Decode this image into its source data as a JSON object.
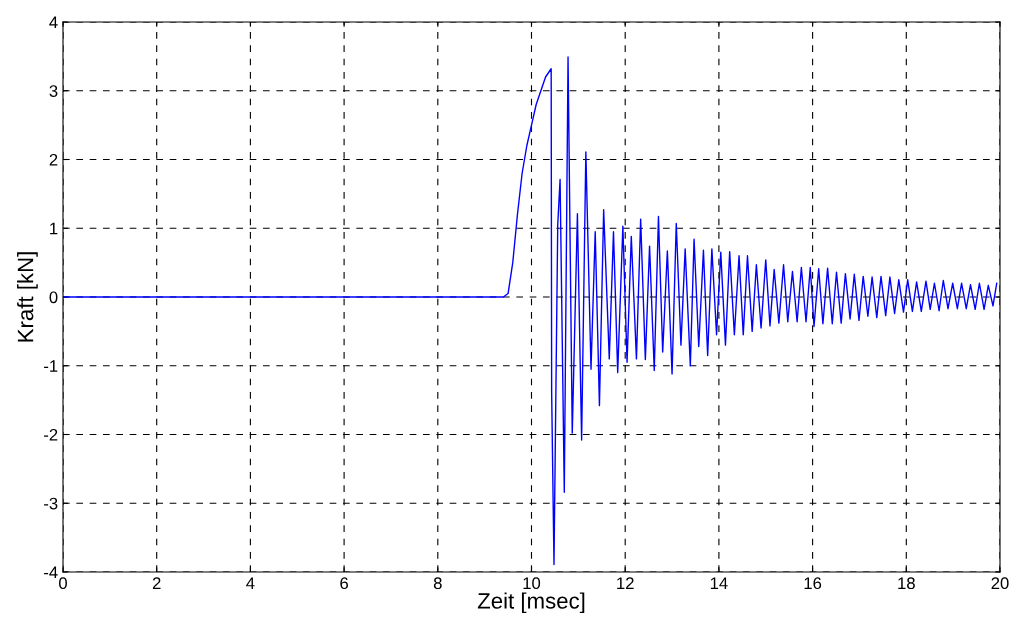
{
  "chart_data": {
    "type": "line",
    "xlabel": "Zeit [msec]",
    "ylabel": "Kraft [kN]",
    "xlim": [
      0,
      20
    ],
    "ylim": [
      -4,
      4
    ],
    "xticks": [
      0,
      2,
      4,
      6,
      8,
      10,
      12,
      14,
      16,
      18,
      20
    ],
    "yticks": [
      -4,
      -3,
      -2,
      -1,
      0,
      1,
      2,
      3,
      4
    ],
    "grid": true,
    "line_style": "solid",
    "marker": "none",
    "series": [
      {
        "color": "#0000ff",
        "x": [
          0,
          9.4,
          9.5,
          9.6,
          9.7,
          9.8,
          9.9,
          10.0,
          10.1,
          10.2,
          10.3,
          10.42,
          10.43,
          10.48,
          10.56,
          10.61,
          10.7,
          10.78,
          10.87,
          10.98,
          11.07,
          11.16,
          11.27,
          11.36,
          11.45,
          11.54,
          11.66,
          11.75,
          11.84,
          11.95,
          12.04,
          12.13,
          12.24,
          12.33,
          12.43,
          12.52,
          12.62,
          12.71,
          12.8,
          12.9,
          13.0,
          13.09,
          13.19,
          13.28,
          13.39,
          13.47,
          13.57,
          13.67,
          13.76,
          13.85,
          13.95,
          14.04,
          14.14,
          14.23,
          14.33,
          14.43,
          14.52,
          14.61,
          14.71,
          14.8,
          14.9,
          15.0,
          15.09,
          15.18,
          15.28,
          15.38,
          15.47,
          15.57,
          15.67,
          15.76,
          15.86,
          15.95,
          16.03,
          16.13,
          16.22,
          16.32,
          16.42,
          16.51,
          16.61,
          16.7,
          16.8,
          16.89,
          16.99,
          17.08,
          17.18,
          17.27,
          17.37,
          17.46,
          17.56,
          17.65,
          17.75,
          17.84,
          17.94,
          18.03,
          18.13,
          18.22,
          18.32,
          18.42,
          18.51,
          18.6,
          18.7,
          18.79,
          18.89,
          18.99,
          19.09,
          19.18,
          19.28,
          19.37,
          19.47,
          19.56,
          19.66,
          19.75,
          19.85,
          19.93
        ],
        "values": [
          0,
          0,
          0.05,
          0.5,
          1.2,
          1.8,
          2.2,
          2.5,
          2.8,
          3.0,
          3.2,
          3.32,
          -1.38,
          -3.89,
          1.05,
          1.71,
          -2.84,
          3.49,
          -1.98,
          1.21,
          -2.08,
          2.11,
          -1.05,
          0.95,
          -1.58,
          1.27,
          -0.9,
          0.95,
          -1.1,
          1.03,
          -0.95,
          0.88,
          -0.9,
          1.13,
          -0.91,
          0.74,
          -1.07,
          1.17,
          -0.8,
          0.67,
          -1.12,
          1.07,
          -0.7,
          0.7,
          -1.0,
          0.84,
          -0.72,
          0.68,
          -0.85,
          0.7,
          -0.55,
          0.65,
          -0.7,
          0.66,
          -0.55,
          0.6,
          -0.55,
          0.6,
          -0.5,
          0.47,
          -0.45,
          0.54,
          -0.42,
          0.4,
          -0.38,
          0.47,
          -0.36,
          0.37,
          -0.36,
          0.43,
          -0.36,
          0.43,
          -0.43,
          0.41,
          -0.39,
          0.42,
          -0.39,
          0.36,
          -0.38,
          0.34,
          -0.32,
          0.33,
          -0.34,
          0.3,
          -0.28,
          0.29,
          -0.3,
          0.3,
          -0.27,
          0.29,
          -0.24,
          0.25,
          -0.22,
          0.25,
          -0.21,
          0.22,
          -0.21,
          0.23,
          -0.18,
          0.2,
          -0.2,
          0.24,
          -0.17,
          0.2,
          -0.17,
          0.2,
          -0.17,
          0.18,
          -0.18,
          0.2,
          -0.18,
          0.17,
          -0.13,
          0.2
        ]
      }
    ]
  }
}
